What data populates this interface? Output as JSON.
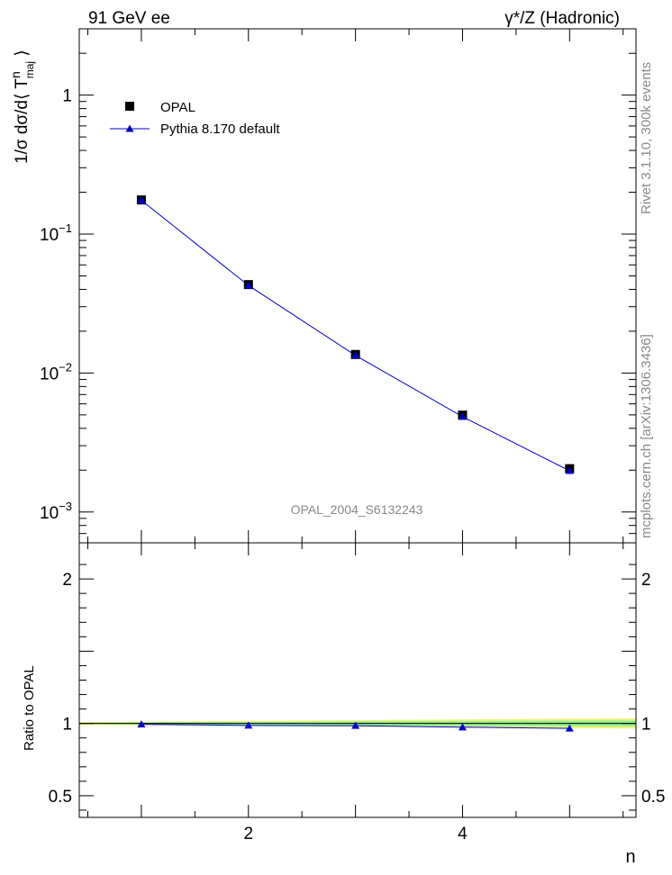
{
  "header": {
    "left": "91 GeV ee",
    "right": "γ*/Z (Hadronic)"
  },
  "side_labels": {
    "rivet": "Rivet 3.1.10,  300k events",
    "mcplots": "mcplots.cern.ch [arXiv:1306.3436]"
  },
  "chart_data": [
    {
      "type": "scatter",
      "panel": "main",
      "ylabel_parts": {
        "pre": "1/σ dσ/d⟨ T",
        "sup": "n",
        "sub": "maj",
        "post": " ⟩"
      },
      "x": [
        1,
        2,
        3,
        4,
        5
      ],
      "xlim": [
        0.42,
        5.62
      ],
      "ylim": [
        0.0006,
        3.0
      ],
      "ylog": true,
      "y_ticks": [
        {
          "value": 1,
          "label": "1",
          "exp": ""
        },
        {
          "value": 0.1,
          "label": "10",
          "exp": "−1"
        },
        {
          "value": 0.01,
          "label": "10",
          "exp": "−2"
        },
        {
          "value": 0.001,
          "label": "10",
          "exp": "−3"
        }
      ],
      "watermark": "OPAL_2004_S6132243",
      "legend_position": "top-left",
      "series": [
        {
          "name": "OPAL",
          "marker": "square",
          "color": "#000000",
          "values": [
            0.176,
            0.0433,
            0.0136,
            0.00498,
            0.00205
          ]
        },
        {
          "name": "Pythia 8.170 default",
          "marker": "triangle",
          "color": "#0000cc",
          "values": [
            0.175,
            0.0427,
            0.0134,
            0.00485,
            0.00198
          ]
        }
      ]
    },
    {
      "type": "line",
      "panel": "ratio",
      "ylabel": "Ratio to OPAL",
      "xlabel": "n",
      "x": [
        1,
        2,
        3,
        4,
        5
      ],
      "xlim": [
        0.42,
        5.62
      ],
      "ylim": [
        0.35,
        2.25
      ],
      "y_ticks": [
        {
          "value": 2,
          "label": "2"
        },
        {
          "value": 1,
          "label": "1"
        },
        {
          "value": 0.5,
          "label": "0.5"
        }
      ],
      "x_ticks": [
        {
          "value": 2,
          "label": "2"
        },
        {
          "value": 4,
          "label": "4"
        }
      ],
      "reference": 1,
      "band_yellow": {
        "x": [
          0.42,
          1.5,
          2.5,
          3.5,
          4.5,
          5.62
        ],
        "lo": [
          0.99,
          0.985,
          0.98,
          0.975,
          0.97,
          0.965
        ],
        "hi": [
          1.01,
          1.015,
          1.02,
          1.025,
          1.03,
          1.035
        ]
      },
      "band_green": {
        "x": [
          0.42,
          1.5,
          2.5,
          3.5,
          4.5,
          5.62
        ],
        "lo": [
          0.995,
          0.99,
          0.988,
          0.985,
          0.982,
          0.98
        ],
        "hi": [
          1.005,
          1.01,
          1.012,
          1.015,
          1.018,
          1.02
        ]
      },
      "series": [
        {
          "name": "Pythia 8.170 default",
          "marker": "triangle",
          "color": "#0000cc",
          "values": [
            0.994,
            0.986,
            0.985,
            0.974,
            0.966
          ]
        }
      ]
    }
  ]
}
